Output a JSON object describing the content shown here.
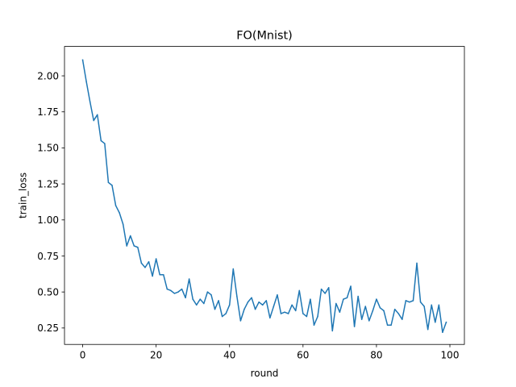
{
  "chart_data": {
    "type": "line",
    "title": "FO(Mnist)",
    "xlabel": "round",
    "ylabel": "train_loss",
    "xlim": [
      -4.95,
      103.95
    ],
    "ylim": [
      0.136,
      2.204
    ],
    "x_ticks": [
      0,
      20,
      40,
      60,
      80,
      100
    ],
    "x_tick_labels": [
      "0",
      "20",
      "40",
      "60",
      "80",
      "100"
    ],
    "y_ticks": [
      0.25,
      0.5,
      0.75,
      1.0,
      1.25,
      1.5,
      1.75,
      2.0
    ],
    "y_tick_labels": [
      "0.25",
      "0.50",
      "0.75",
      "1.00",
      "1.25",
      "1.50",
      "1.75",
      "2.00"
    ],
    "grid": false,
    "series": [
      {
        "color": "#1f77b4",
        "x": [
          0,
          1,
          2,
          3,
          4,
          5,
          6,
          7,
          8,
          9,
          10,
          11,
          12,
          13,
          14,
          15,
          16,
          17,
          18,
          19,
          20,
          21,
          22,
          23,
          24,
          25,
          26,
          27,
          28,
          29,
          30,
          31,
          32,
          33,
          34,
          35,
          36,
          37,
          38,
          39,
          40,
          41,
          42,
          43,
          44,
          45,
          46,
          47,
          48,
          49,
          50,
          51,
          52,
          53,
          54,
          55,
          56,
          57,
          58,
          59,
          60,
          61,
          62,
          63,
          64,
          65,
          66,
          67,
          68,
          69,
          70,
          71,
          72,
          73,
          74,
          75,
          76,
          77,
          78,
          79,
          80,
          81,
          82,
          83,
          84,
          85,
          86,
          87,
          88,
          89,
          90,
          91,
          92,
          93,
          94,
          95,
          96,
          97,
          98,
          99
        ],
        "values": [
          2.11,
          1.96,
          1.82,
          1.69,
          1.73,
          1.55,
          1.53,
          1.26,
          1.24,
          1.1,
          1.05,
          0.97,
          0.82,
          0.89,
          0.82,
          0.81,
          0.7,
          0.67,
          0.71,
          0.61,
          0.73,
          0.62,
          0.62,
          0.52,
          0.51,
          0.49,
          0.5,
          0.52,
          0.46,
          0.59,
          0.45,
          0.41,
          0.45,
          0.42,
          0.5,
          0.48,
          0.38,
          0.44,
          0.33,
          0.35,
          0.41,
          0.66,
          0.47,
          0.3,
          0.38,
          0.43,
          0.46,
          0.38,
          0.43,
          0.41,
          0.44,
          0.32,
          0.4,
          0.48,
          0.35,
          0.36,
          0.35,
          0.41,
          0.37,
          0.51,
          0.35,
          0.33,
          0.45,
          0.27,
          0.33,
          0.52,
          0.49,
          0.53,
          0.23,
          0.42,
          0.36,
          0.45,
          0.46,
          0.54,
          0.26,
          0.47,
          0.31,
          0.4,
          0.3,
          0.37,
          0.45,
          0.39,
          0.37,
          0.27,
          0.27,
          0.38,
          0.35,
          0.31,
          0.44,
          0.43,
          0.44,
          0.7,
          0.43,
          0.4,
          0.24,
          0.41,
          0.29,
          0.41,
          0.22,
          0.29
        ]
      }
    ]
  }
}
